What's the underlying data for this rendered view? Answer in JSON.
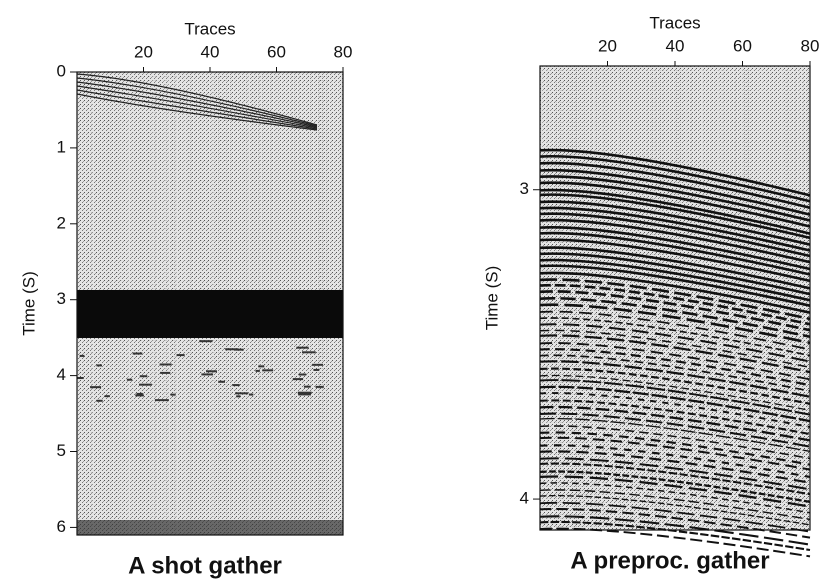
{
  "chart_data": [
    {
      "type": "seismic",
      "title": "A shot gather",
      "xlabel": "Traces",
      "ylabel": "Time (S)",
      "xlim": [
        0,
        80
      ],
      "xticks": [
        20,
        40,
        60,
        80
      ],
      "ylim": [
        0,
        6.1
      ],
      "yticks": [
        0,
        1,
        2,
        3,
        4,
        5,
        6
      ]
    },
    {
      "type": "seismic",
      "title": "A preproc. gather",
      "xlabel": "Traces",
      "ylabel": "Time (S)",
      "xlim": [
        0,
        80
      ],
      "xticks": [
        20,
        40,
        60,
        80
      ],
      "ylim": [
        2.6,
        4.1
      ],
      "yticks": [
        3,
        4
      ]
    }
  ]
}
